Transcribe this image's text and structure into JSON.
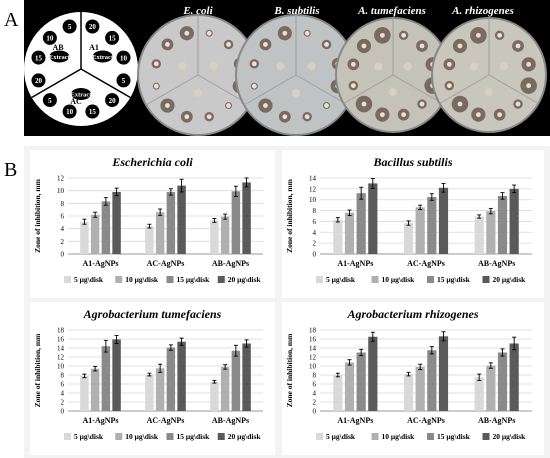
{
  "panel_a": {
    "letter": "A",
    "diagram": {
      "sectors": [
        "AB",
        "A1",
        "AC"
      ],
      "center_labels": [
        "Extract",
        "Extract",
        "Extract"
      ],
      "doses": [
        "20",
        "15",
        "10",
        "5"
      ]
    },
    "dish_labels": [
      "E. coli",
      "B. subtilis",
      "A. tumefaciens",
      "A. rhizogenes"
    ]
  },
  "panel_b": {
    "letter": "B"
  },
  "colors": {
    "5": "#d9d9d9",
    "10": "#b0b0b0",
    "15": "#8a8a8a",
    "20": "#5a5a5a"
  },
  "chart_data": [
    {
      "type": "bar",
      "title": "Escherichia coli",
      "ylabel": "Zone of inhibition, mm",
      "ylim": [
        0,
        12
      ],
      "yticks": [
        "0",
        "2",
        "4",
        "6",
        "8",
        "10",
        "12"
      ],
      "categories": [
        "A1-AgNPs",
        "AC-AgNPs",
        "AB-AgNPs"
      ],
      "series": [
        {
          "name": "5 μg\\disk",
          "values": [
            5.1,
            4.4,
            5.3
          ],
          "errors": [
            0.4,
            0.3,
            0.3
          ]
        },
        {
          "name": "10 μg\\disk",
          "values": [
            6.2,
            6.6,
            5.9
          ],
          "errors": [
            0.4,
            0.5,
            0.4
          ]
        },
        {
          "name": "15 μg\\disk",
          "values": [
            8.3,
            9.8,
            9.9
          ],
          "errors": [
            0.6,
            0.5,
            0.8
          ]
        },
        {
          "name": "20 μg\\disk",
          "values": [
            9.8,
            10.8,
            11.3
          ],
          "errors": [
            0.6,
            1.0,
            0.7
          ]
        }
      ]
    },
    {
      "type": "bar",
      "title": "Bacillus subtilis",
      "ylabel": "Zone of inhibition, mm",
      "ylim": [
        0,
        14
      ],
      "yticks": [
        "0",
        "2",
        "4",
        "6",
        "8",
        "10",
        "12",
        "14"
      ],
      "categories": [
        "A1-AgNPs",
        "AC-AgNPs",
        "AB-AgNPs"
      ],
      "series": [
        {
          "name": "5 μg\\disk",
          "values": [
            6.3,
            5.7,
            6.9
          ],
          "errors": [
            0.4,
            0.4,
            0.3
          ]
        },
        {
          "name": "10 μg\\disk",
          "values": [
            7.6,
            8.6,
            7.9
          ],
          "errors": [
            0.5,
            0.4,
            0.5
          ]
        },
        {
          "name": "15 μg\\disk",
          "values": [
            11.2,
            10.5,
            10.7
          ],
          "errors": [
            1.1,
            0.6,
            0.6
          ]
        },
        {
          "name": "20 μg\\disk",
          "values": [
            13.0,
            12.2,
            12.0
          ],
          "errors": [
            0.9,
            0.8,
            0.7
          ]
        }
      ]
    },
    {
      "type": "bar",
      "title": "Agrobacterium tumefaciens",
      "ylabel": "Zone of inhibition, mm",
      "ylim": [
        0,
        18
      ],
      "yticks": [
        "0",
        "2",
        "4",
        "6",
        "8",
        "10",
        "12",
        "14",
        "16",
        "18"
      ],
      "categories": [
        "A1-AgNPs",
        "AC-AgNPs",
        "AB-AgNPs"
      ],
      "series": [
        {
          "name": "5 μg\\disk",
          "values": [
            7.8,
            8.1,
            6.5
          ],
          "errors": [
            0.4,
            0.3,
            0.3
          ]
        },
        {
          "name": "10 μg\\disk",
          "values": [
            9.4,
            9.5,
            9.8
          ],
          "errors": [
            0.5,
            0.9,
            0.5
          ]
        },
        {
          "name": "15 μg\\disk",
          "values": [
            14.4,
            14.1,
            13.4
          ],
          "errors": [
            1.3,
            0.6,
            1.2
          ]
        },
        {
          "name": "20 μg\\disk",
          "values": [
            15.9,
            15.4,
            15.0
          ],
          "errors": [
            0.9,
            0.8,
            0.8
          ]
        }
      ]
    },
    {
      "type": "bar",
      "title": "Agrobacterium rhizogenes",
      "ylabel": "Zone of inhibition, mm",
      "ylim": [
        0,
        18
      ],
      "yticks": [
        "0",
        "2",
        "4",
        "6",
        "8",
        "10",
        "12",
        "14",
        "16",
        "18"
      ],
      "categories": [
        "A1-AgNPs",
        "AC-AgNPs",
        "AB-AgNPs"
      ],
      "series": [
        {
          "name": "5 μg\\disk",
          "values": [
            8.0,
            8.2,
            7.5
          ],
          "errors": [
            0.4,
            0.4,
            0.7
          ]
        },
        {
          "name": "10 μg\\disk",
          "values": [
            10.8,
            9.8,
            10.1
          ],
          "errors": [
            0.6,
            0.6,
            0.6
          ]
        },
        {
          "name": "15 μg\\disk",
          "values": [
            13.0,
            13.5,
            13.0
          ],
          "errors": [
            0.7,
            0.8,
            0.8
          ]
        },
        {
          "name": "20 μg\\disk",
          "values": [
            16.5,
            16.6,
            15.0
          ],
          "errors": [
            1.0,
            1.0,
            1.4
          ]
        }
      ]
    }
  ]
}
